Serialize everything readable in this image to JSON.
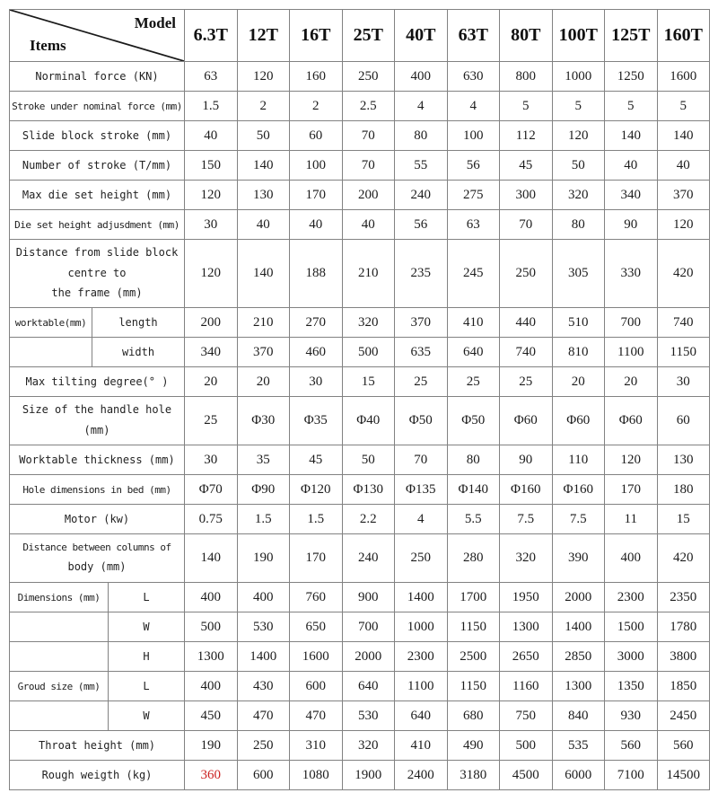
{
  "header": {
    "model_label": "Model",
    "items_label": "Items",
    "columns": [
      "6.3T",
      "12T",
      "16T",
      "25T",
      "40T",
      "63T",
      "80T",
      "100T",
      "125T",
      "160T"
    ]
  },
  "colors": {
    "accent_red": "#cc2222",
    "border_gray": "#828282",
    "text": "#1c1c1c"
  },
  "rows": [
    {
      "id": "nominal-force",
      "label": "Norminal force (KN)",
      "values": [
        "63",
        "120",
        "160",
        "250",
        "400",
        "630",
        "800",
        "1000",
        "1250",
        "1600"
      ]
    },
    {
      "id": "stroke-under-nominal-force",
      "label": "Stroke under nominal force (mm)",
      "values": [
        "1.5",
        "2",
        "2",
        "2.5",
        "4",
        "4",
        "5",
        "5",
        "5",
        "5"
      ]
    },
    {
      "id": "slide-block-stroke",
      "label": "Slide block stroke (mm)",
      "values": [
        "40",
        "50",
        "60",
        "70",
        "80",
        "100",
        "112",
        "120",
        "140",
        "140"
      ]
    },
    {
      "id": "number-of-stroke",
      "label": "Number of stroke (T/mm)",
      "values": [
        "150",
        "140",
        "100",
        "70",
        "55",
        "56",
        "45",
        "50",
        "40",
        "40"
      ]
    },
    {
      "id": "max-die-set-height",
      "label": "Max die set height (mm)",
      "values": [
        "120",
        "130",
        "170",
        "200",
        "240",
        "275",
        "300",
        "320",
        "340",
        "370"
      ]
    },
    {
      "id": "die-set-height-adjusdment",
      "label": "Die set height adjusdment (mm)",
      "values": [
        "30",
        "40",
        "40",
        "40",
        "56",
        "63",
        "70",
        "80",
        "90",
        "120"
      ]
    },
    {
      "id": "distance-slide-block-centre",
      "label_lines": [
        "Distance from slide block",
        "centre to",
        "the frame (mm)"
      ],
      "values": [
        "120",
        "140",
        "188",
        "210",
        "235",
        "245",
        "250",
        "305",
        "330",
        "420"
      ]
    },
    {
      "id": "worktable-length",
      "section": "worktable",
      "group": "worktable(mm)",
      "sub": "length",
      "values": [
        "200",
        "210",
        "270",
        "320",
        "370",
        "410",
        "440",
        "510",
        "700",
        "740"
      ]
    },
    {
      "id": "worktable-width",
      "section": "worktable",
      "group": "",
      "sub": "width",
      "values": [
        "340",
        "370",
        "460",
        "500",
        "635",
        "640",
        "740",
        "810",
        "1100",
        "1150"
      ]
    },
    {
      "id": "max-tilting-degree",
      "label": "Max tilting degree(° )",
      "values": [
        "20",
        "20",
        "30",
        "15",
        "25",
        "25",
        "25",
        "20",
        "20",
        "30"
      ]
    },
    {
      "id": "handle-hole-size",
      "label_lines": [
        "Size of the handle hole",
        "(mm)"
      ],
      "values": [
        "25",
        "Φ30",
        "Φ35",
        "Φ40",
        "Φ50",
        "Φ50",
        "Φ60",
        "Φ60",
        "Φ60",
        "60"
      ]
    },
    {
      "id": "worktable-thickness",
      "label": "Worktable thickness (mm)",
      "values": [
        "30",
        "35",
        "45",
        "50",
        "70",
        "80",
        "90",
        "110",
        "120",
        "130"
      ]
    },
    {
      "id": "hole-dimensions-in-bed",
      "label": "Hole dimensions in bed (mm)",
      "values": [
        "Φ70",
        "Φ90",
        "Φ120",
        "Φ130",
        "Φ135",
        "Φ140",
        "Φ160",
        "Φ160",
        "170",
        "180"
      ]
    },
    {
      "id": "motor",
      "label": "Motor (kw)",
      "values": [
        "0.75",
        "1.5",
        "1.5",
        "2.2",
        "4",
        "5.5",
        "7.5",
        "7.5",
        "11",
        "15"
      ]
    },
    {
      "id": "distance-between-columns",
      "label_lines": [
        "Distance between columns of",
        "body (mm)"
      ],
      "values": [
        "140",
        "190",
        "170",
        "240",
        "250",
        "280",
        "320",
        "390",
        "400",
        "420"
      ]
    },
    {
      "id": "dimensions-l",
      "section": "dimensions",
      "group": "Dimensions (mm)",
      "sub": "L",
      "values": [
        "400",
        "400",
        "760",
        "900",
        "1400",
        "1700",
        "1950",
        "2000",
        "2300",
        "2350"
      ]
    },
    {
      "id": "dimensions-w",
      "section": "dimensions",
      "group": "",
      "sub": "W",
      "values": [
        "500",
        "530",
        "650",
        "700",
        "1000",
        "1150",
        "1300",
        "1400",
        "1500",
        "1780"
      ]
    },
    {
      "id": "dimensions-h",
      "section": "dimensions",
      "group": "",
      "sub": "H",
      "values": [
        "1300",
        "1400",
        "1600",
        "2000",
        "2300",
        "2500",
        "2650",
        "2850",
        "3000",
        "3800"
      ]
    },
    {
      "id": "groud-size-l",
      "section": "groud-size",
      "group": "Groud size (mm)",
      "sub": "L",
      "values": [
        "400",
        "430",
        "600",
        "640",
        "1100",
        "1150",
        "1160",
        "1300",
        "1350",
        "1850"
      ]
    },
    {
      "id": "groud-size-w",
      "section": "groud-size",
      "group": "",
      "sub": "W",
      "values": [
        "450",
        "470",
        "470",
        "530",
        "640",
        "680",
        "750",
        "840",
        "930",
        "2450"
      ]
    },
    {
      "id": "throat-height",
      "label": "Throat height (mm)",
      "values": [
        "190",
        "250",
        "310",
        "320",
        "410",
        "490",
        "500",
        "535",
        "560",
        "560"
      ]
    },
    {
      "id": "rough-weigth",
      "label": "Rough weigth (kg)",
      "values": [
        "360",
        "600",
        "1080",
        "1900",
        "2400",
        "3180",
        "4500",
        "6000",
        "7100",
        "14500"
      ],
      "red_index": 0
    }
  ]
}
